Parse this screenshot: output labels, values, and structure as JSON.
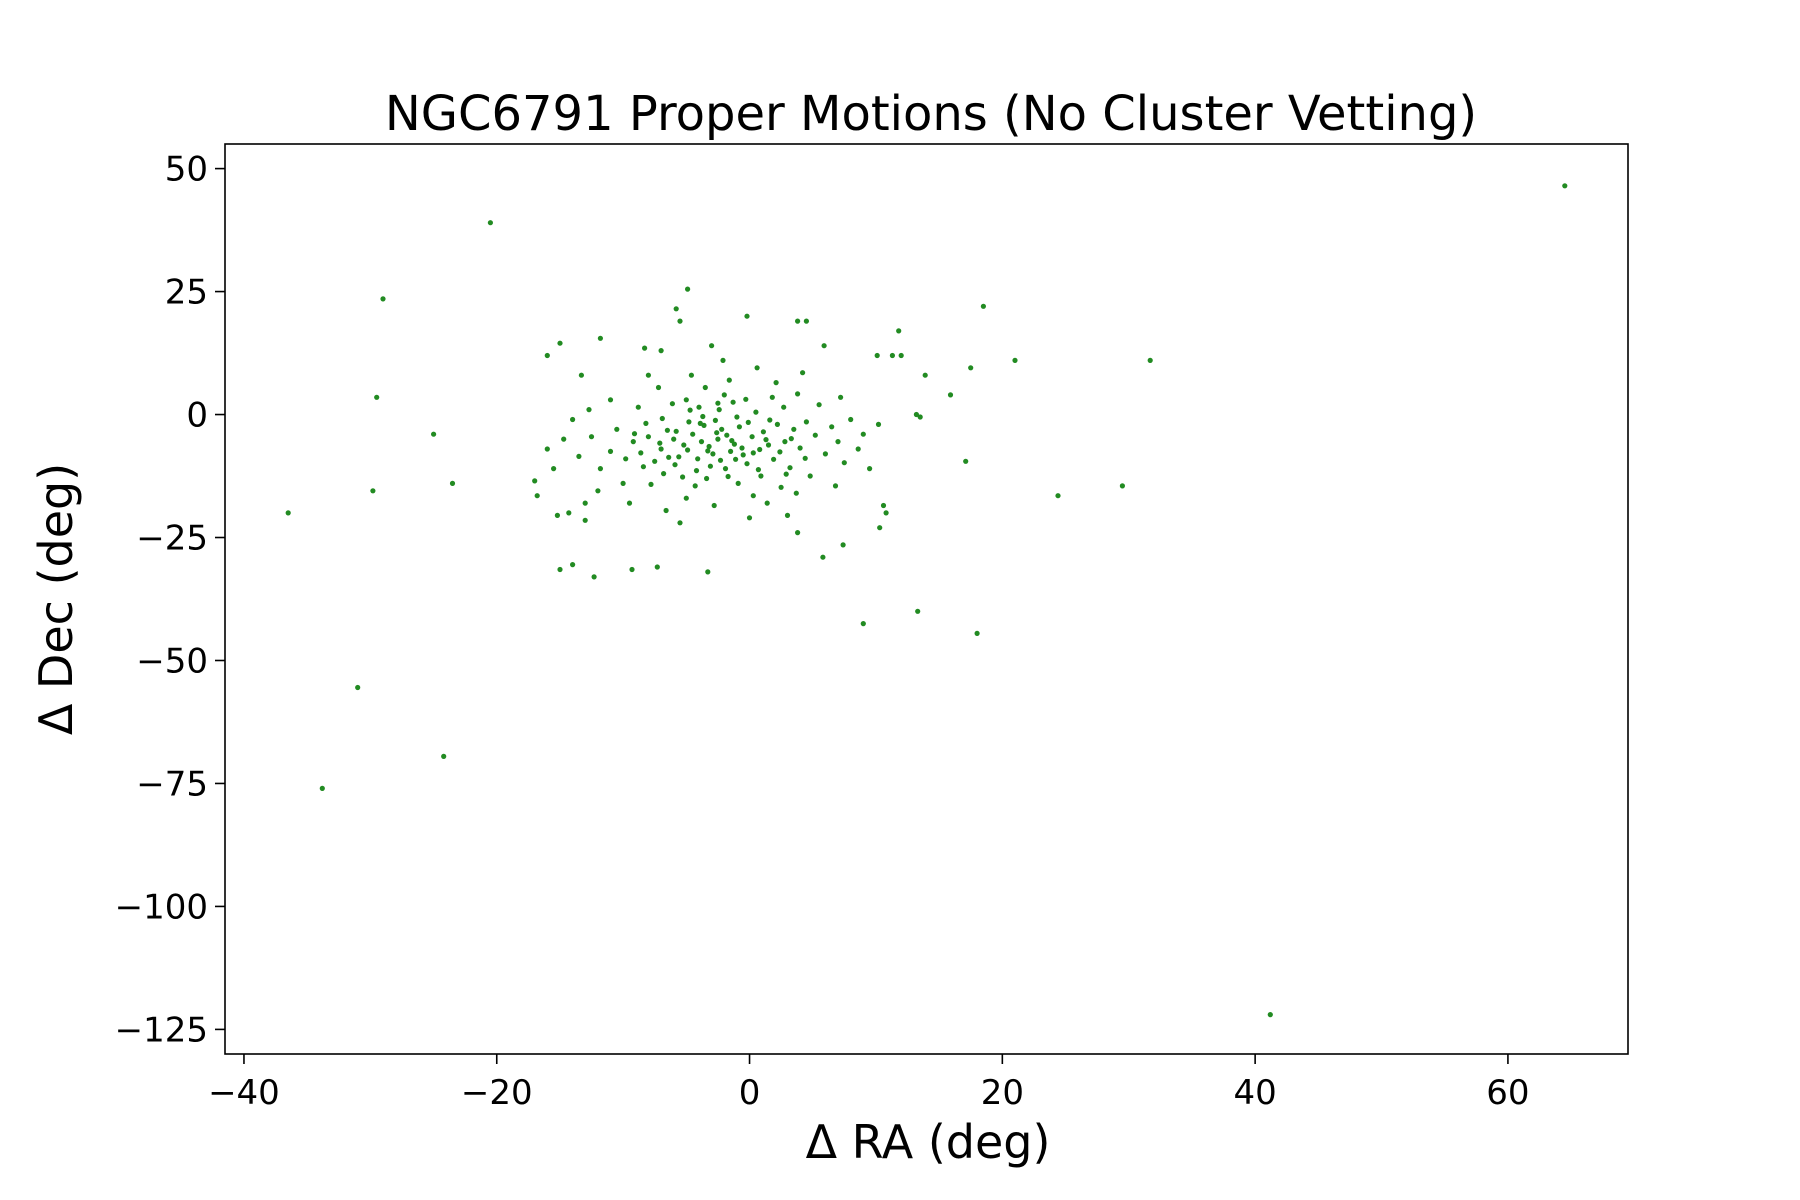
{
  "chart_data": {
    "type": "scatter",
    "title": "NGC6791 Proper Motions (No Cluster Vetting)",
    "xlabel": "Δ RA (deg)",
    "ylabel": "Δ Dec (deg)",
    "xlim": [
      -41.5,
      69.5
    ],
    "ylim": [
      -130,
      55
    ],
    "xticks": [
      -40,
      -20,
      0,
      20,
      40,
      60
    ],
    "yticks": [
      50,
      25,
      0,
      -25,
      -50,
      -75,
      -100,
      -125
    ],
    "xtick_labels": [
      "−40",
      "−20",
      "0",
      "20",
      "40",
      "60"
    ],
    "ytick_labels": [
      "50",
      "25",
      "0",
      "−25",
      "−50",
      "−75",
      "−100",
      "−125"
    ],
    "grid": false,
    "legend": "none",
    "marker_color": "#228B22",
    "series": [
      {
        "points": [
          [
            -20.5,
            39
          ],
          [
            -29,
            23.5
          ],
          [
            -29.5,
            3.5
          ],
          [
            -25,
            -4
          ],
          [
            -23.5,
            -14
          ],
          [
            -29.8,
            -15.5
          ],
          [
            -36.5,
            -20
          ],
          [
            -31,
            -55.5
          ],
          [
            -24.2,
            -69.5
          ],
          [
            -33.8,
            -76
          ],
          [
            -4.9,
            25.5
          ],
          [
            -5.8,
            21.5
          ],
          [
            -5.5,
            19
          ],
          [
            -0.2,
            20
          ],
          [
            3.8,
            19
          ],
          [
            4.5,
            19
          ],
          [
            18.5,
            22
          ],
          [
            11.8,
            17
          ],
          [
            5.9,
            14
          ],
          [
            -3,
            14
          ],
          [
            -16,
            12
          ],
          [
            -15,
            14.5
          ],
          [
            -11.8,
            15.5
          ],
          [
            -13.3,
            8
          ],
          [
            -8.3,
            13.5
          ],
          [
            -7,
            13
          ],
          [
            10.1,
            12
          ],
          [
            11.3,
            12
          ],
          [
            12,
            12
          ],
          [
            21,
            11
          ],
          [
            31.7,
            11
          ],
          [
            17.5,
            9.5
          ],
          [
            13.9,
            8
          ],
          [
            15.9,
            4
          ],
          [
            13.2,
            0
          ],
          [
            13.5,
            -0.5
          ],
          [
            17.1,
            -9.5
          ],
          [
            24.4,
            -16.5
          ],
          [
            29.5,
            -14.5
          ],
          [
            10.6,
            -18.5
          ],
          [
            10.8,
            -20
          ],
          [
            10.3,
            -23
          ],
          [
            7.4,
            -26.5
          ],
          [
            5.8,
            -29
          ],
          [
            3.8,
            -24
          ],
          [
            -3.3,
            -32
          ],
          [
            -7.3,
            -31
          ],
          [
            -9.3,
            -31.5
          ],
          [
            -12.3,
            -33
          ],
          [
            -15,
            -31.5
          ],
          [
            -14,
            -30.5
          ],
          [
            -17,
            -13.5
          ],
          [
            -16.8,
            -16.5
          ],
          [
            -15.2,
            -20.5
          ],
          [
            -14.3,
            -20
          ],
          [
            -13,
            -21.5
          ],
          [
            -12.7,
            1
          ],
          [
            -14.7,
            -5
          ],
          [
            9,
            -42.5
          ],
          [
            13.3,
            -40
          ],
          [
            18,
            -44.5
          ],
          [
            41.2,
            -122
          ],
          [
            64.5,
            46.5
          ],
          [
            -2.5,
            -5
          ],
          [
            -3.2,
            -6.5
          ],
          [
            -1.8,
            -4.2
          ],
          [
            -2.2,
            -3
          ],
          [
            -3.8,
            -5.5
          ],
          [
            -1.2,
            -6
          ],
          [
            -0.8,
            -2.5
          ],
          [
            -4.5,
            -4
          ],
          [
            -2.9,
            -8
          ],
          [
            -1.5,
            -7.5
          ],
          [
            0.2,
            -4.5
          ],
          [
            -5.2,
            -6.2
          ],
          [
            -3.6,
            -2.2
          ],
          [
            -0.5,
            -8.2
          ],
          [
            -4.1,
            -9
          ],
          [
            -6,
            -5
          ],
          [
            1.1,
            -3.5
          ],
          [
            -2.7,
            -1.2
          ],
          [
            -1,
            -0.5
          ],
          [
            -5.6,
            -8.6
          ],
          [
            -6.5,
            -3.2
          ],
          [
            0.8,
            -7.1
          ],
          [
            -3.1,
            -10.5
          ],
          [
            -4.8,
            -1.5
          ],
          [
            1.5,
            -6.2
          ],
          [
            -7,
            -7
          ],
          [
            -1.9,
            -11
          ],
          [
            2.2,
            -2
          ],
          [
            -5.9,
            -10.2
          ],
          [
            -0.2,
            -10
          ],
          [
            -8,
            -4.5
          ],
          [
            2.8,
            -5.5
          ],
          [
            -7.5,
            -9.5
          ],
          [
            -2.4,
            1
          ],
          [
            -4,
            1.5
          ],
          [
            0.5,
            0.5
          ],
          [
            3.5,
            -3
          ],
          [
            -8.6,
            -7.8
          ],
          [
            1.9,
            -9.1
          ],
          [
            -6.8,
            -12
          ],
          [
            -3.4,
            -13
          ],
          [
            0.9,
            -12.5
          ],
          [
            4,
            -6.8
          ],
          [
            -9.2,
            -5.5
          ],
          [
            -1.3,
            2.5
          ],
          [
            -5,
            3
          ],
          [
            2.7,
            1.5
          ],
          [
            4.5,
            -1.5
          ],
          [
            -9.8,
            -9
          ],
          [
            3.2,
            -10.8
          ],
          [
            -8.2,
            -1.8
          ],
          [
            -4.3,
            -14.5
          ],
          [
            -0.9,
            -14
          ],
          [
            5.2,
            -4.2
          ],
          [
            -10.5,
            -3
          ],
          [
            -2,
            4
          ],
          [
            1.8,
            3.5
          ],
          [
            -6.1,
            2.2
          ],
          [
            6,
            -8
          ],
          [
            -11,
            -7.5
          ],
          [
            -7.8,
            -14.2
          ],
          [
            2.5,
            -14.8
          ],
          [
            -5,
            -17
          ],
          [
            0.3,
            -16.5
          ],
          [
            6.5,
            -2.5
          ],
          [
            -11.8,
            -11
          ],
          [
            -3.5,
            5.5
          ],
          [
            3.8,
            4.2
          ],
          [
            7,
            -5.5
          ],
          [
            -8.8,
            1.5
          ],
          [
            -12.5,
            -4.5
          ],
          [
            4.8,
            -12.5
          ],
          [
            -10,
            -14
          ],
          [
            7.5,
            -9.8
          ],
          [
            -2.8,
            -18.5
          ],
          [
            1.4,
            -18
          ],
          [
            -6.6,
            -19.5
          ],
          [
            5.5,
            2
          ],
          [
            -7.2,
            5.5
          ],
          [
            8,
            -1
          ],
          [
            -13.5,
            -8.5
          ],
          [
            -1.6,
            7
          ],
          [
            2.1,
            6.5
          ],
          [
            -4.6,
            8
          ],
          [
            8.6,
            -7
          ],
          [
            -9.5,
            -18
          ],
          [
            3.7,
            -16
          ],
          [
            -12,
            -15.5
          ],
          [
            6.8,
            -14.5
          ],
          [
            9,
            -4
          ],
          [
            -14,
            -1
          ],
          [
            -5.5,
            -22
          ],
          [
            0,
            -21
          ],
          [
            9.5,
            -11
          ],
          [
            -15.5,
            -11
          ],
          [
            0.6,
            9.5
          ],
          [
            -8,
            8
          ],
          [
            4.2,
            8.5
          ],
          [
            10.2,
            -2
          ],
          [
            -2.1,
            11
          ],
          [
            -11,
            3
          ],
          [
            7.2,
            3.5
          ],
          [
            -13,
            -18
          ],
          [
            -16,
            -7
          ],
          [
            3,
            -20.5
          ],
          [
            -3.9,
            -1.8
          ],
          [
            -2.6,
            -3.7
          ],
          [
            -1.4,
            -5.3
          ],
          [
            -3.3,
            -7.4
          ],
          [
            -0.6,
            -6.8
          ],
          [
            -4.9,
            -7.2
          ],
          [
            -2.3,
            -9.3
          ],
          [
            -1.1,
            -9.1
          ],
          [
            0.3,
            -7.8
          ],
          [
            -4.2,
            -11.4
          ],
          [
            -5.8,
            -3.4
          ],
          [
            -0.1,
            -1.6
          ],
          [
            1.3,
            -5.1
          ],
          [
            -6.4,
            -8.7
          ],
          [
            -3.7,
            -0.4
          ],
          [
            2.4,
            -7.6
          ],
          [
            -7.1,
            -5.8
          ],
          [
            -1.7,
            -12.6
          ],
          [
            1.6,
            -1.1
          ],
          [
            -5.3,
            -12.7
          ],
          [
            3.3,
            -4.9
          ],
          [
            -8.4,
            -10.6
          ],
          [
            -2.5,
            2.3
          ],
          [
            0.7,
            -11.2
          ],
          [
            -6.9,
            -0.8
          ],
          [
            4.4,
            -8.9
          ],
          [
            -9.1,
            -3.9
          ],
          [
            2.9,
            -12.1
          ],
          [
            -4.7,
            0.9
          ],
          [
            -0.3,
            3.1
          ]
        ]
      }
    ]
  }
}
